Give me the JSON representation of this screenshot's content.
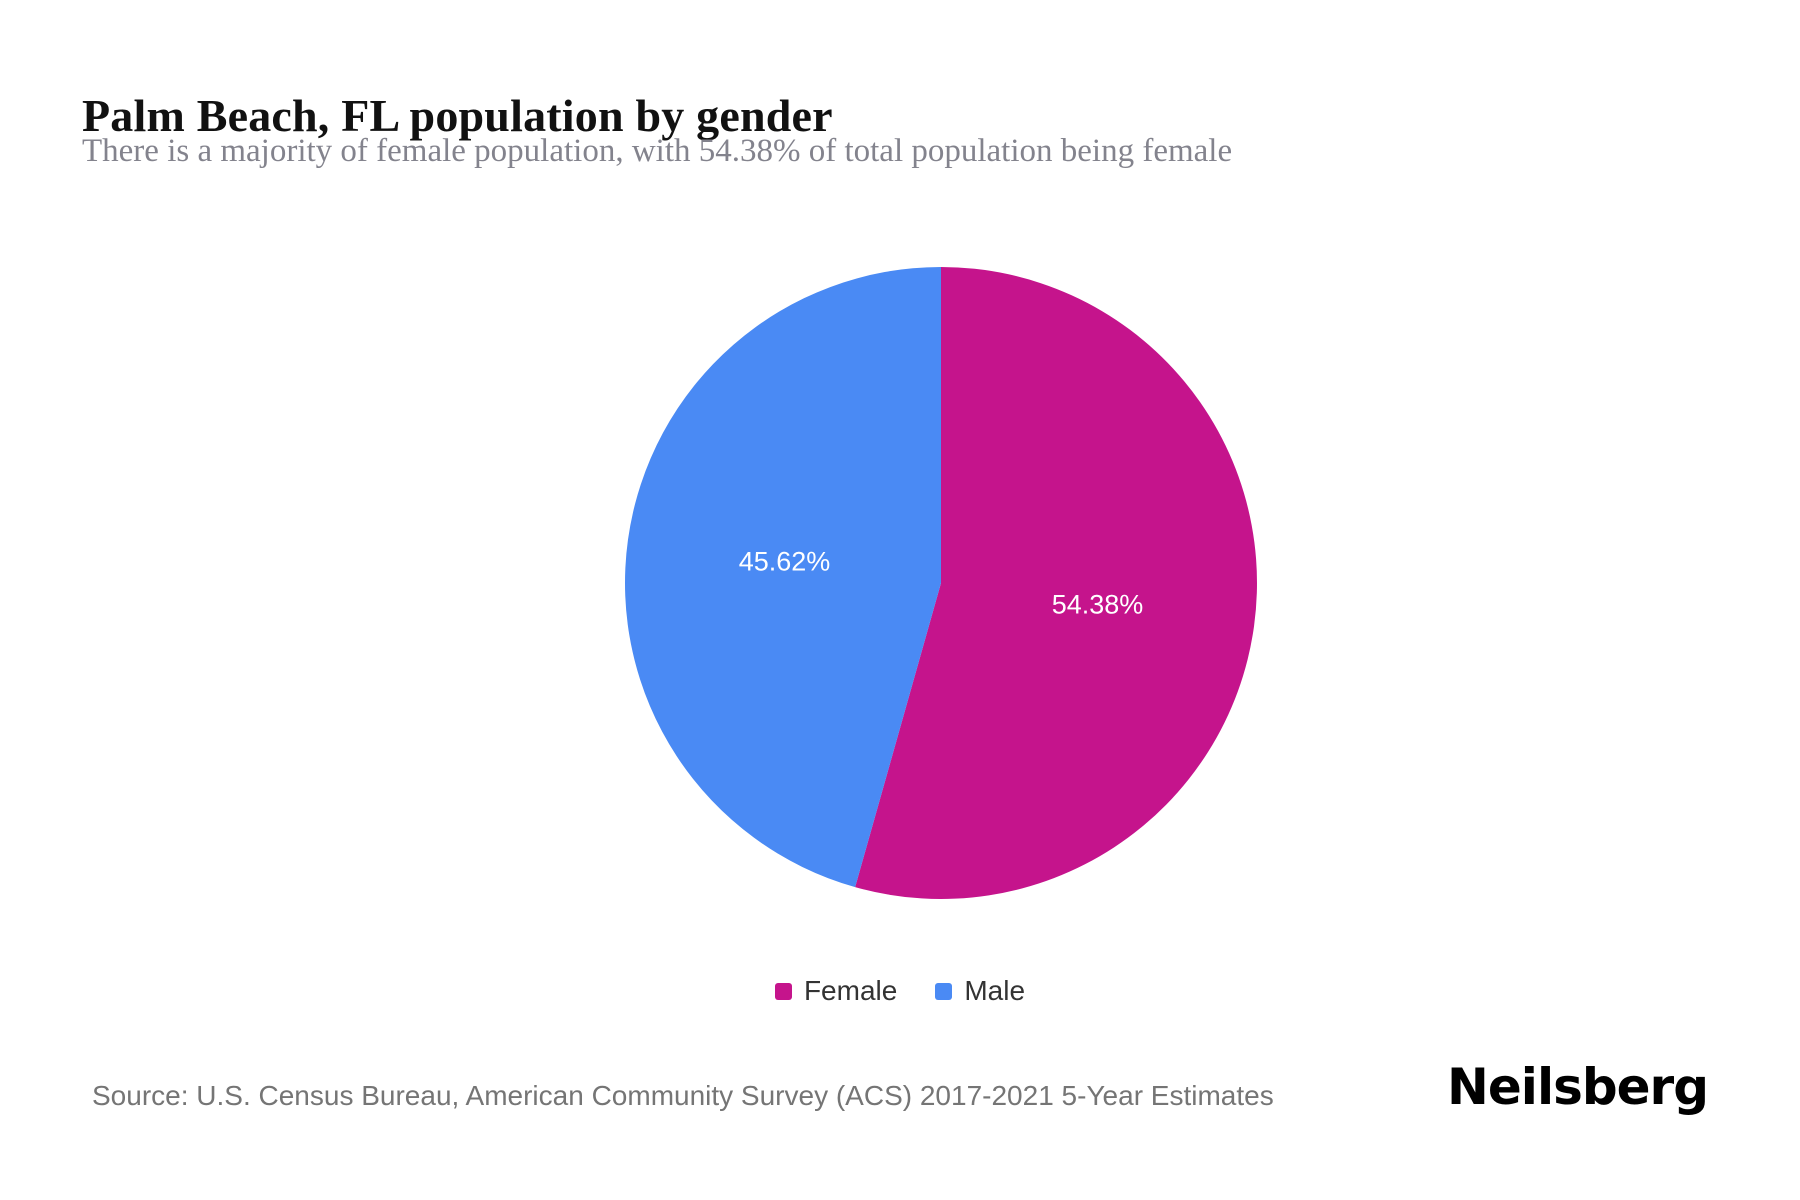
{
  "header": {
    "title": "Palm Beach, FL population by gender",
    "subtitle": "There is a majority of female population, with 54.38% of total population being female"
  },
  "chart_data": {
    "type": "pie",
    "title": "Palm Beach, FL population by gender",
    "subtitle": "There is a majority of female population, with 54.38% of total population being female",
    "start_angle_deg": -90,
    "direction": "clockwise",
    "legend_position": "bottom",
    "series": [
      {
        "name": "Female",
        "value": 54.38,
        "label": "54.38%",
        "color": "#c5148c"
      },
      {
        "name": "Male",
        "value": 45.62,
        "label": "45.62%",
        "color": "#4a8af4"
      }
    ]
  },
  "footer": {
    "source": "Source: U.S. Census Bureau, American Community Survey (ACS) 2017-2021 5-Year Estimates",
    "brand": "Neilsberg"
  }
}
